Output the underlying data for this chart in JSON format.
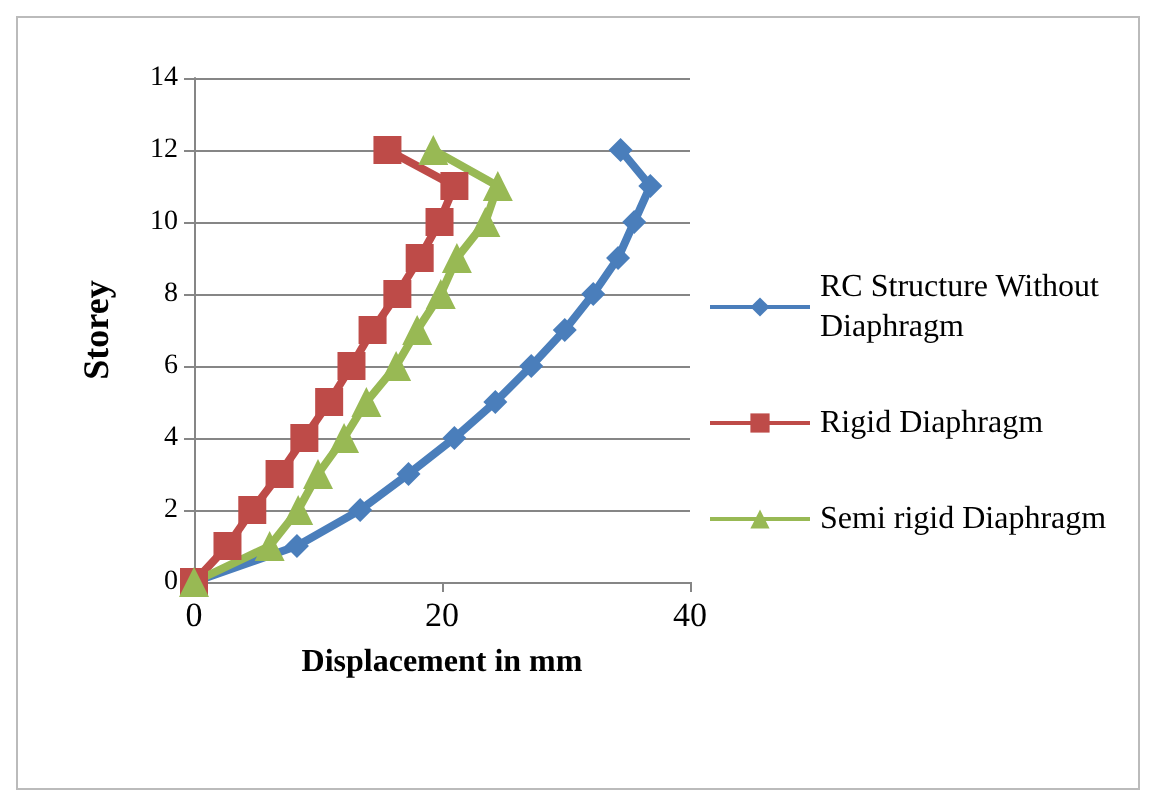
{
  "chart_data": {
    "type": "line",
    "xlabel": "Displacement in mm",
    "ylabel": "Storey",
    "xlim": [
      0,
      40
    ],
    "xticks": [
      0,
      20,
      40
    ],
    "ylim": [
      0,
      14
    ],
    "yticks": [
      0,
      2,
      4,
      6,
      8,
      10,
      12,
      14
    ],
    "grid": "y",
    "legend": "right",
    "series": [
      {
        "name": "RC Structure Without Diaphragm",
        "color": "#4a7ebb",
        "marker": "diamond",
        "x": [
          0,
          8.3,
          13.4,
          17.3,
          21.0,
          24.3,
          27.2,
          29.9,
          32.2,
          34.2,
          35.5,
          36.8,
          34.4
        ],
        "values": [
          0,
          1,
          2,
          3,
          4,
          5,
          6,
          7,
          8,
          9,
          10,
          11,
          12
        ]
      },
      {
        "name": "Rigid Diaphragm",
        "color": "#be4b48",
        "marker": "square",
        "x": [
          0,
          2.7,
          4.7,
          6.9,
          8.9,
          10.9,
          12.7,
          14.4,
          16.4,
          18.2,
          19.8,
          21.0,
          15.6
        ],
        "values": [
          0,
          1,
          2,
          3,
          4,
          5,
          6,
          7,
          8,
          9,
          10,
          11,
          12
        ]
      },
      {
        "name": "Semi rigid Diaphragm",
        "color": "#98b954",
        "marker": "triangle",
        "x": [
          0,
          6.1,
          8.4,
          10.0,
          12.1,
          13.9,
          16.3,
          18.0,
          19.9,
          21.2,
          23.5,
          24.5,
          19.3
        ],
        "values": [
          0,
          1,
          2,
          3,
          4,
          5,
          6,
          7,
          8,
          9,
          10,
          11,
          12
        ]
      }
    ]
  }
}
